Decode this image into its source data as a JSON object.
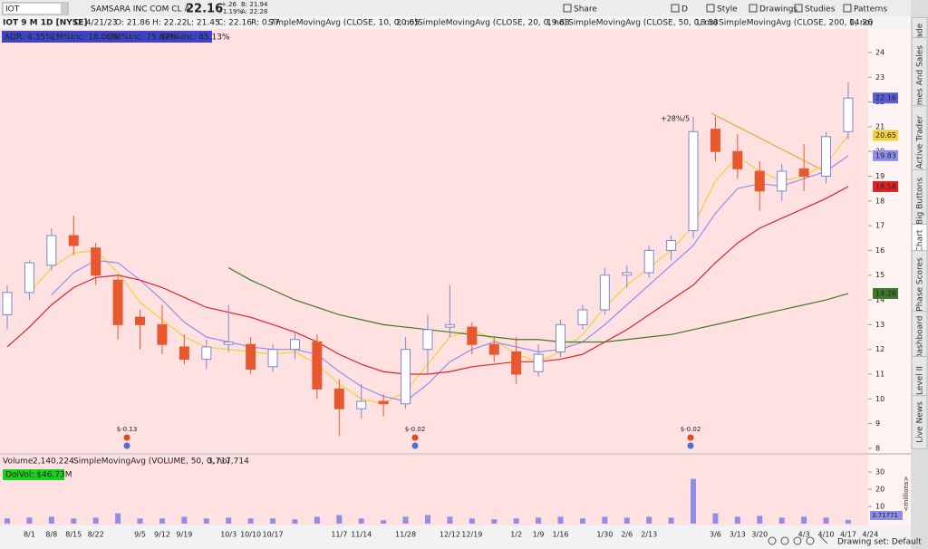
{
  "toolbar": {
    "symbol": "IOT",
    "company": "SAMSARA INC COM CL A",
    "last": "22.16",
    "change": "+.26",
    "change_pct": "+1.19%",
    "bid": "B: 21.94",
    "ask": "A: 22.28",
    "buttons": [
      "Share",
      "D",
      "Style",
      "Drawings",
      "Studies",
      "Patterns"
    ]
  },
  "info": {
    "symbol_line": "IOT 9 M 1D [NYSE]",
    "date": "D: 4/21/23",
    "open": "O: 21.86",
    "high": "H: 22.22",
    "low": "L: 21.45",
    "close": "C: 22.16",
    "range": "R: 0.77"
  },
  "stats": [
    "ADR: 4.35%",
    "1M%Inc: 18.06%",
    "3M%Inc: 75.87%",
    "6M%Inc: 85.13%"
  ],
  "side_tabs": [
    "Trade",
    "Times And Sales",
    "Active Trader",
    "Big Buttons",
    "Chart",
    "Phase Scores",
    "Dashboard",
    "Level II",
    "Live News"
  ],
  "footer": {
    "drawing_set": "Drawing set: Default"
  },
  "chart_data": {
    "type": "candlestick",
    "categories": [
      null,
      "8/1",
      "8/8",
      "8/15",
      "8/22",
      null,
      "9/5",
      "9/12",
      "9/19",
      null,
      "10/3",
      "10/10",
      "10/17",
      null,
      null,
      "11/7",
      "11/14",
      null,
      "11/28",
      null,
      "12/12",
      "12/19",
      null,
      "1/2",
      "1/9",
      "1/16",
      null,
      "1/30",
      "2/6",
      "2/13",
      null,
      null,
      "3/6",
      "3/13",
      "3/20",
      null,
      "4/3",
      "4/10",
      "4/17",
      "4/24"
    ],
    "open": [
      13.4,
      14.3,
      15.4,
      16.6,
      16.1,
      14.8,
      13.3,
      13.0,
      12.1,
      11.6,
      12.2,
      12.2,
      11.3,
      12.0,
      12.3,
      10.4,
      9.6,
      9.9,
      9.8,
      12.0,
      12.9,
      12.9,
      12.2,
      11.9,
      11.1,
      11.9,
      13.0,
      13.6,
      15.0,
      15.1,
      16.0,
      16.8,
      20.9,
      20.0,
      19.2,
      18.4,
      19.3,
      19.0,
      20.8,
      null
    ],
    "high": [
      14.6,
      15.6,
      16.9,
      17.4,
      16.3,
      15.0,
      13.6,
      13.8,
      12.6,
      12.4,
      13.8,
      12.5,
      12.2,
      12.7,
      12.6,
      10.8,
      10.6,
      10.2,
      12.5,
      13.4,
      14.6,
      13.1,
      12.5,
      12.5,
      12.2,
      13.2,
      13.8,
      15.3,
      15.4,
      16.2,
      16.6,
      21.4,
      21.4,
      20.7,
      19.6,
      19.5,
      20.3,
      20.8,
      22.8,
      null
    ],
    "low": [
      12.8,
      14.0,
      15.2,
      15.8,
      14.6,
      12.4,
      12.0,
      11.8,
      11.4,
      11.2,
      11.9,
      11.0,
      11.1,
      11.6,
      10.0,
      8.5,
      9.2,
      9.3,
      9.6,
      11.0,
      12.5,
      11.8,
      11.5,
      10.6,
      10.9,
      11.7,
      12.8,
      13.4,
      14.5,
      14.9,
      15.6,
      16.5,
      19.6,
      18.9,
      17.6,
      18.0,
      18.4,
      18.7,
      20.5,
      null
    ],
    "close": [
      14.3,
      15.5,
      16.6,
      16.2,
      15.0,
      13.0,
      13.0,
      12.2,
      11.6,
      12.1,
      12.3,
      11.2,
      12.0,
      12.4,
      10.4,
      9.6,
      9.9,
      9.8,
      12.0,
      12.8,
      13.0,
      12.2,
      11.8,
      11.0,
      11.8,
      13.0,
      13.6,
      15.0,
      15.1,
      16.0,
      16.4,
      20.8,
      20.0,
      19.3,
      18.4,
      19.2,
      19.0,
      20.6,
      22.16,
      null
    ],
    "up_color": "#ffffff",
    "up_stroke": "#7f84d6",
    "down_color": "#e8582e",
    "series": [
      {
        "name": "SimpleMovingAvg (CLOSE, 10, 0, no)",
        "color": "#f2d13c",
        "values": [
          null,
          14.3,
          15.3,
          15.9,
          16.0,
          15.1,
          13.9,
          13.2,
          12.5,
          12.1,
          12.0,
          11.9,
          11.8,
          11.9,
          11.4,
          10.6,
          10.0,
          9.8,
          10.3,
          11.4,
          12.5,
          12.8,
          12.4,
          11.8,
          11.5,
          11.9,
          12.6,
          13.7,
          14.6,
          15.3,
          16.0,
          17.0,
          18.8,
          19.8,
          19.2,
          18.8,
          19.0,
          19.5,
          20.65,
          null
        ]
      },
      {
        "name": "SimpleMovingAvg (CLOSE, 20, 0, no)",
        "color": "#8f8ff0",
        "values": [
          null,
          null,
          14.2,
          15.1,
          15.6,
          15.5,
          14.8,
          14.0,
          13.1,
          12.5,
          12.3,
          12.1,
          12.0,
          12.0,
          11.8,
          11.1,
          10.5,
          10.1,
          9.9,
          10.6,
          11.5,
          12.0,
          12.3,
          12.1,
          11.9,
          12.0,
          12.3,
          13.0,
          13.8,
          14.6,
          15.4,
          16.2,
          17.5,
          18.5,
          18.7,
          18.6,
          18.9,
          19.2,
          19.83,
          null
        ]
      },
      {
        "name": "SimpleMovingAvg (CLOSE, 50, 0, no)",
        "color": "#e02424",
        "values": [
          12.1,
          12.9,
          13.8,
          14.5,
          14.9,
          15.0,
          14.8,
          14.5,
          14.1,
          13.7,
          13.5,
          13.3,
          13.0,
          12.7,
          12.3,
          11.8,
          11.4,
          11.1,
          11.0,
          11.0,
          11.1,
          11.3,
          11.4,
          11.5,
          11.5,
          11.6,
          11.8,
          12.3,
          12.8,
          13.4,
          14.0,
          14.6,
          15.5,
          16.3,
          16.9,
          17.3,
          17.7,
          18.1,
          18.58,
          null
        ]
      },
      {
        "name": "SimpleMovingAvg (CLOSE, 200, 0, no)",
        "color": "#3d7a2a",
        "values": [
          null,
          null,
          null,
          null,
          null,
          null,
          null,
          null,
          null,
          null,
          15.3,
          14.8,
          14.4,
          14.0,
          13.7,
          13.4,
          13.2,
          13.0,
          12.9,
          12.8,
          12.7,
          12.6,
          12.5,
          12.4,
          12.4,
          12.3,
          12.3,
          12.3,
          12.4,
          12.5,
          12.6,
          12.8,
          13.0,
          13.2,
          13.4,
          13.6,
          13.8,
          14.0,
          14.26,
          null
        ]
      }
    ],
    "ylim": [
      7.85,
      24.95
    ],
    "yticks": [
      8,
      9,
      10,
      11,
      12,
      13,
      14,
      15,
      16,
      17,
      18,
      19,
      20,
      21,
      22,
      23,
      24
    ],
    "grid": false,
    "annotation": "+28%/5",
    "earnings": [
      "$-0.13",
      "$-0.02",
      "$-0.02"
    ],
    "volume": {
      "title": "Volume",
      "last": "2,140,224",
      "study": "SimpleMovingAvg (VOLUME, 50, 0, no)",
      "study_value": "3,717,714",
      "study_tag": "3.71771",
      "dolvol": "DolVol: $46.73M",
      "unit": "<millions>",
      "color": "#8e8ee6",
      "values": [
        3,
        3.5,
        4,
        3,
        3.5,
        6,
        3,
        3,
        4,
        3,
        3.5,
        3,
        3,
        2.5,
        4,
        5,
        3,
        2,
        4,
        5,
        4,
        3,
        2.5,
        3,
        3.5,
        4,
        3,
        4,
        3.5,
        4,
        3.5,
        26,
        6,
        4,
        4.5,
        3.5,
        4,
        3.5,
        2.14,
        null
      ],
      "ylim": [
        0,
        31
      ],
      "yticks": [
        10,
        20,
        30
      ]
    }
  }
}
